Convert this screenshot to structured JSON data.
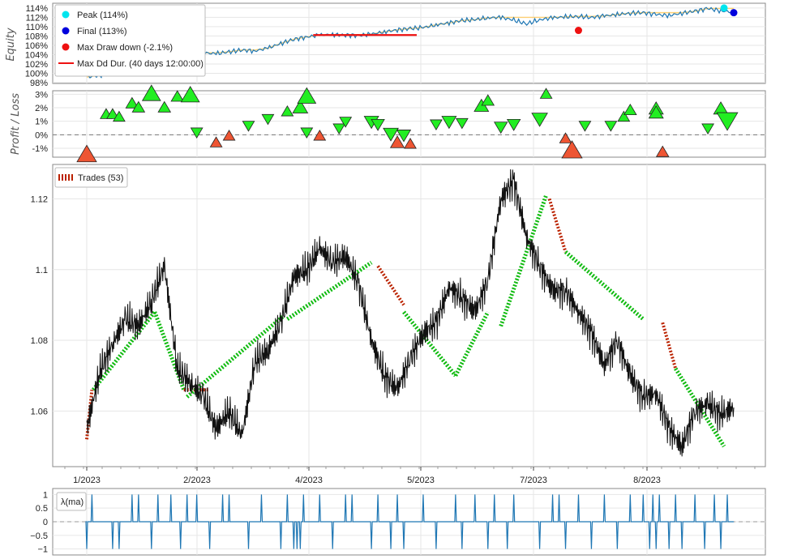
{
  "chart_data": [
    {
      "panel": "equity",
      "type": "line",
      "ylabel": "Equity",
      "y_ticks": [
        "98%",
        "100%",
        "102%",
        "104%",
        "106%",
        "108%",
        "110%",
        "112%",
        "114%"
      ],
      "ylim": [
        98,
        114.5
      ],
      "legend": {
        "placement": "top-left",
        "entries": [
          {
            "label": "Peak (114%)",
            "color": "#00e5ee",
            "marker": "circle"
          },
          {
            "label": "Final (113%)",
            "color": "#0000dd",
            "marker": "circle"
          },
          {
            "label": "Max Draw down (-2.1%)",
            "color": "#ee1111",
            "marker": "circle"
          },
          {
            "label": "Max Dd Dur. (40 days 12:00:00)",
            "color": "#ee1111",
            "marker": "line"
          }
        ]
      },
      "x": [
        0,
        0.02,
        0.04,
        0.06,
        0.08,
        0.1,
        0.12,
        0.14,
        0.16,
        0.18,
        0.2,
        0.22,
        0.24,
        0.26,
        0.28,
        0.3,
        0.32,
        0.34,
        0.36,
        0.38,
        0.4,
        0.42,
        0.44,
        0.46,
        0.48,
        0.5,
        0.52,
        0.54,
        0.56,
        0.58,
        0.6,
        0.62,
        0.64,
        0.66,
        0.68,
        0.7,
        0.72,
        0.74,
        0.76,
        0.78,
        0.8,
        0.82,
        0.84,
        0.86,
        0.88,
        0.9,
        0.92,
        0.94,
        0.96,
        0.98,
        1.0
      ],
      "values": [
        99.2,
        99.5,
        100.1,
        100.6,
        101.2,
        102.2,
        103.3,
        103.0,
        103.8,
        104.4,
        104.2,
        104.6,
        105.0,
        104.8,
        105.4,
        106.4,
        107.3,
        107.8,
        108.2,
        108.3,
        108.2,
        108.1,
        108.4,
        108.9,
        109.3,
        109.6,
        109.8,
        110.4,
        110.8,
        111.3,
        111.5,
        111.9,
        112.0,
        111.4,
        110.6,
        111.5,
        111.9,
        112.1,
        112.2,
        112.0,
        112.3,
        112.6,
        112.9,
        113.0,
        112.6,
        112.4,
        112.9,
        113.3,
        113.9,
        113.4,
        113.1
      ],
      "peak": {
        "label": "Peak (114%)",
        "x": 0.985,
        "y": 114
      },
      "final": {
        "label": "Final (113%)",
        "x": 1.0,
        "y": 113
      },
      "max_drawdown": {
        "label": "Max Draw down (-2.1%)",
        "x": 0.76,
        "y": 109.2,
        "value": -2.1
      },
      "max_dd_duration": {
        "label": "Max Dd Dur. (40 days 12:00:00)",
        "x_start": 0.35,
        "x_end": 0.51,
        "y": 108.2
      }
    },
    {
      "panel": "profit_loss",
      "type": "scatter",
      "ylabel": "Profit / Loss",
      "y_ticks": [
        "-1%",
        "0%",
        "1%",
        "2%",
        "3%"
      ],
      "ylim": [
        -1.6,
        3.2
      ],
      "trades": [
        {
          "x": 0.0,
          "pnl": -1.5,
          "size": 2.0
        },
        {
          "x": 0.03,
          "pnl": 1.5,
          "size": 0.8
        },
        {
          "x": 0.04,
          "pnl": 1.5,
          "size": 0.8
        },
        {
          "x": 0.05,
          "pnl": 1.3,
          "size": 0.8
        },
        {
          "x": 0.07,
          "pnl": 2.3,
          "size": 0.9
        },
        {
          "x": 0.08,
          "pnl": 2.0,
          "size": 0.9
        },
        {
          "x": 0.1,
          "pnl": 3.0,
          "size": 1.8
        },
        {
          "x": 0.12,
          "pnl": 2.0,
          "size": 0.9
        },
        {
          "x": 0.14,
          "pnl": 2.8,
          "size": 0.9
        },
        {
          "x": 0.16,
          "pnl": 2.9,
          "size": 1.8
        },
        {
          "x": 0.17,
          "pnl": 0.2,
          "size": 0.8
        },
        {
          "x": 0.2,
          "pnl": -0.6,
          "size": 0.8
        },
        {
          "x": 0.22,
          "pnl": -0.1,
          "size": 0.8
        },
        {
          "x": 0.25,
          "pnl": 0.7,
          "size": 0.8
        },
        {
          "x": 0.28,
          "pnl": 1.2,
          "size": 0.8
        },
        {
          "x": 0.31,
          "pnl": 1.7,
          "size": 0.8
        },
        {
          "x": 0.33,
          "pnl": 2.0,
          "size": 1.3
        },
        {
          "x": 0.34,
          "pnl": 2.8,
          "size": 1.8
        },
        {
          "x": 0.34,
          "pnl": 0.2,
          "size": 0.8
        },
        {
          "x": 0.36,
          "pnl": -0.1,
          "size": 0.8
        },
        {
          "x": 0.39,
          "pnl": 0.5,
          "size": 0.8
        },
        {
          "x": 0.4,
          "pnl": 1.0,
          "size": 0.8
        },
        {
          "x": 0.44,
          "pnl": 1.0,
          "size": 1.2
        },
        {
          "x": 0.45,
          "pnl": 0.8,
          "size": 1.0
        },
        {
          "x": 0.47,
          "pnl": 0.1,
          "size": 1.3
        },
        {
          "x": 0.48,
          "pnl": -0.6,
          "size": 1.1
        },
        {
          "x": 0.49,
          "pnl": 0.0,
          "size": 1.1
        },
        {
          "x": 0.5,
          "pnl": -0.7,
          "size": 0.8
        },
        {
          "x": 0.54,
          "pnl": 0.8,
          "size": 0.8
        },
        {
          "x": 0.56,
          "pnl": 1.0,
          "size": 1.2
        },
        {
          "x": 0.58,
          "pnl": 0.9,
          "size": 0.8
        },
        {
          "x": 0.61,
          "pnl": 2.1,
          "size": 1.2
        },
        {
          "x": 0.62,
          "pnl": 2.5,
          "size": 0.9
        },
        {
          "x": 0.64,
          "pnl": 0.6,
          "size": 1.0
        },
        {
          "x": 0.66,
          "pnl": 0.8,
          "size": 1.0
        },
        {
          "x": 0.7,
          "pnl": 1.2,
          "size": 1.4
        },
        {
          "x": 0.71,
          "pnl": 3.0,
          "size": 0.8
        },
        {
          "x": 0.74,
          "pnl": -0.3,
          "size": 0.8
        },
        {
          "x": 0.75,
          "pnl": -1.2,
          "size": 2.1
        },
        {
          "x": 0.77,
          "pnl": 0.7,
          "size": 0.8
        },
        {
          "x": 0.81,
          "pnl": 0.7,
          "size": 0.8
        },
        {
          "x": 0.83,
          "pnl": 1.3,
          "size": 0.8
        },
        {
          "x": 0.84,
          "pnl": 1.8,
          "size": 0.9
        },
        {
          "x": 0.88,
          "pnl": 1.9,
          "size": 1.2
        },
        {
          "x": 0.88,
          "pnl": 1.6,
          "size": 1.2
        },
        {
          "x": 0.89,
          "pnl": -1.3,
          "size": 0.9
        },
        {
          "x": 0.96,
          "pnl": 0.5,
          "size": 0.8
        },
        {
          "x": 0.98,
          "pnl": 1.9,
          "size": 1.2
        },
        {
          "x": 0.99,
          "pnl": 1.1,
          "size": 2.2
        }
      ]
    },
    {
      "panel": "price",
      "type": "line",
      "y_ticks": [
        "1.06",
        "1.08",
        "1.1",
        "1.12"
      ],
      "ylim": [
        1.0445,
        1.1295
      ],
      "x_ticks": [
        "1/2023",
        "2/2023",
        "4/2023",
        "5/2023",
        "7/2023",
        "8/2023"
      ],
      "legend": {
        "placement": "top-left",
        "entries": [
          {
            "label": "Trades (53)",
            "color": "#bb2200"
          }
        ]
      },
      "x": [
        0,
        0.02,
        0.04,
        0.06,
        0.08,
        0.1,
        0.12,
        0.14,
        0.16,
        0.18,
        0.2,
        0.22,
        0.24,
        0.26,
        0.28,
        0.3,
        0.32,
        0.34,
        0.36,
        0.38,
        0.4,
        0.42,
        0.44,
        0.46,
        0.48,
        0.5,
        0.52,
        0.54,
        0.56,
        0.58,
        0.6,
        0.62,
        0.64,
        0.66,
        0.68,
        0.7,
        0.72,
        0.74,
        0.76,
        0.78,
        0.8,
        0.82,
        0.84,
        0.86,
        0.88,
        0.9,
        0.92,
        0.94,
        0.96,
        0.98,
        1.0
      ],
      "values": [
        1.055,
        1.071,
        1.079,
        1.086,
        1.084,
        1.091,
        1.101,
        1.072,
        1.068,
        1.064,
        1.055,
        1.06,
        1.053,
        1.074,
        1.077,
        1.085,
        1.098,
        1.1,
        1.106,
        1.102,
        1.104,
        1.096,
        1.08,
        1.07,
        1.066,
        1.075,
        1.082,
        1.085,
        1.095,
        1.092,
        1.088,
        1.097,
        1.12,
        1.125,
        1.109,
        1.101,
        1.094,
        1.094,
        1.088,
        1.082,
        1.073,
        1.08,
        1.07,
        1.064,
        1.065,
        1.055,
        1.05,
        1.06,
        1.062,
        1.059,
        1.061
      ],
      "trades": [
        {
          "x0": 0.0,
          "y0": 1.052,
          "x1": 0.008,
          "y1": 1.066,
          "win": false
        },
        {
          "x0": 0.01,
          "y0": 1.066,
          "x1": 0.105,
          "y1": 1.088,
          "win": true
        },
        {
          "x0": 0.105,
          "y0": 1.088,
          "x1": 0.15,
          "y1": 1.066,
          "win": true
        },
        {
          "x0": 0.15,
          "y0": 1.066,
          "x1": 0.19,
          "y1": 1.066,
          "win": false
        },
        {
          "x0": 0.155,
          "y0": 1.064,
          "x1": 0.305,
          "y1": 1.087,
          "win": true
        },
        {
          "x0": 0.31,
          "y0": 1.086,
          "x1": 0.44,
          "y1": 1.102,
          "win": true
        },
        {
          "x0": 0.45,
          "y0": 1.101,
          "x1": 0.49,
          "y1": 1.09,
          "win": false
        },
        {
          "x0": 0.49,
          "y0": 1.088,
          "x1": 0.57,
          "y1": 1.07,
          "win": true
        },
        {
          "x0": 0.57,
          "y0": 1.07,
          "x1": 0.62,
          "y1": 1.088,
          "win": true
        },
        {
          "x0": 0.64,
          "y0": 1.084,
          "x1": 0.71,
          "y1": 1.121,
          "win": true
        },
        {
          "x0": 0.715,
          "y0": 1.12,
          "x1": 0.74,
          "y1": 1.105,
          "win": false
        },
        {
          "x0": 0.74,
          "y0": 1.105,
          "x1": 0.86,
          "y1": 1.086,
          "win": true
        },
        {
          "x0": 0.89,
          "y0": 1.085,
          "x1": 0.91,
          "y1": 1.072,
          "win": false
        },
        {
          "x0": 0.91,
          "y0": 1.072,
          "x1": 0.985,
          "y1": 1.05,
          "win": true
        }
      ]
    },
    {
      "panel": "indicator",
      "type": "line",
      "legend": {
        "placement": "top-left",
        "entries": [
          {
            "label": "λ(ma)",
            "color": "#1f77b4"
          }
        ]
      },
      "y_ticks": [
        "1",
        "0.5",
        "0",
        "−0.5",
        "−1"
      ],
      "ylim": [
        -1.1,
        1.1
      ],
      "spikes": [
        {
          "x": 0.0,
          "v": -1
        },
        {
          "x": 0.008,
          "v": 1
        },
        {
          "x": 0.04,
          "v": -1
        },
        {
          "x": 0.05,
          "v": -1
        },
        {
          "x": 0.07,
          "v": 1
        },
        {
          "x": 0.08,
          "v": 1
        },
        {
          "x": 0.1,
          "v": -1
        },
        {
          "x": 0.11,
          "v": 1
        },
        {
          "x": 0.13,
          "v": 1
        },
        {
          "x": 0.145,
          "v": -1
        },
        {
          "x": 0.155,
          "v": 1
        },
        {
          "x": 0.17,
          "v": 1
        },
        {
          "x": 0.19,
          "v": -1
        },
        {
          "x": 0.21,
          "v": 1
        },
        {
          "x": 0.22,
          "v": 1
        },
        {
          "x": 0.25,
          "v": -1
        },
        {
          "x": 0.27,
          "v": 1
        },
        {
          "x": 0.3,
          "v": -1
        },
        {
          "x": 0.31,
          "v": 1
        },
        {
          "x": 0.32,
          "v": -1
        },
        {
          "x": 0.325,
          "v": -1
        },
        {
          "x": 0.33,
          "v": -1
        },
        {
          "x": 0.335,
          "v": 1
        },
        {
          "x": 0.36,
          "v": 1
        },
        {
          "x": 0.38,
          "v": -1
        },
        {
          "x": 0.4,
          "v": 1
        },
        {
          "x": 0.41,
          "v": 1
        },
        {
          "x": 0.44,
          "v": -1
        },
        {
          "x": 0.45,
          "v": 1
        },
        {
          "x": 0.47,
          "v": -1
        },
        {
          "x": 0.48,
          "v": 1
        },
        {
          "x": 0.49,
          "v": -1
        },
        {
          "x": 0.52,
          "v": 1
        },
        {
          "x": 0.54,
          "v": -1
        },
        {
          "x": 0.57,
          "v": 1
        },
        {
          "x": 0.58,
          "v": -1
        },
        {
          "x": 0.6,
          "v": 1
        },
        {
          "x": 0.62,
          "v": -1
        },
        {
          "x": 0.63,
          "v": 1
        },
        {
          "x": 0.65,
          "v": -1
        },
        {
          "x": 0.66,
          "v": 1
        },
        {
          "x": 0.7,
          "v": -1
        },
        {
          "x": 0.72,
          "v": 1
        },
        {
          "x": 0.73,
          "v": 1
        },
        {
          "x": 0.74,
          "v": -1
        },
        {
          "x": 0.76,
          "v": 1
        },
        {
          "x": 0.78,
          "v": -1
        },
        {
          "x": 0.8,
          "v": 1
        },
        {
          "x": 0.82,
          "v": -1
        },
        {
          "x": 0.84,
          "v": 1
        },
        {
          "x": 0.86,
          "v": 1
        },
        {
          "x": 0.87,
          "v": -1
        },
        {
          "x": 0.875,
          "v": 1
        },
        {
          "x": 0.88,
          "v": -1
        },
        {
          "x": 0.885,
          "v": 1
        },
        {
          "x": 0.9,
          "v": -1
        },
        {
          "x": 0.91,
          "v": 1
        },
        {
          "x": 0.92,
          "v": -1
        },
        {
          "x": 0.94,
          "v": 1
        },
        {
          "x": 0.955,
          "v": -1
        },
        {
          "x": 0.97,
          "v": 1
        },
        {
          "x": 0.98,
          "v": -1
        },
        {
          "x": 0.99,
          "v": 1
        }
      ]
    }
  ]
}
